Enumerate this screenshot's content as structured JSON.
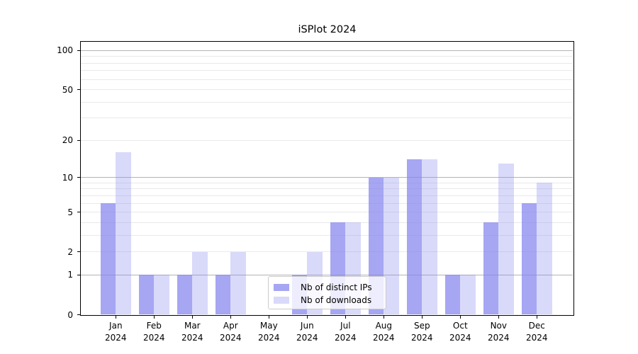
{
  "chart_data": {
    "type": "bar",
    "title": "iSPlot 2024",
    "categories": [
      "Jan",
      "Feb",
      "Mar",
      "Apr",
      "May",
      "Jun",
      "Jul",
      "Aug",
      "Sep",
      "Oct",
      "Nov",
      "Dec"
    ],
    "year_label": "2024",
    "series": [
      {
        "name": "Nb of distinct IPs",
        "color": "rgba(131,131,238,0.72)",
        "values": [
          6,
          1,
          1,
          1,
          0,
          1,
          4,
          10,
          14,
          1,
          4,
          6
        ]
      },
      {
        "name": "Nb of downloads",
        "color": "rgba(131,131,238,0.31)",
        "values": [
          16,
          1,
          2,
          2,
          0,
          2,
          4,
          10,
          14,
          1,
          13,
          9
        ]
      }
    ],
    "yscale": "log1p",
    "ylim": [
      0,
      118
    ],
    "y_ticks": [
      0,
      1,
      2,
      5,
      10,
      20,
      50,
      100
    ],
    "grid_major": [
      1,
      10,
      100
    ],
    "grid_minor": [
      2,
      3,
      4,
      5,
      6,
      7,
      8,
      9,
      20,
      30,
      40,
      50,
      60,
      70,
      80,
      90
    ],
    "grid_on": true,
    "legend_position": "lower center",
    "xlabel": "",
    "ylabel": "",
    "colors": {
      "grid_major": "#b4b4b4",
      "grid_minor": "#e9e9e9",
      "axis": "#000000",
      "background": "#ffffff"
    }
  }
}
